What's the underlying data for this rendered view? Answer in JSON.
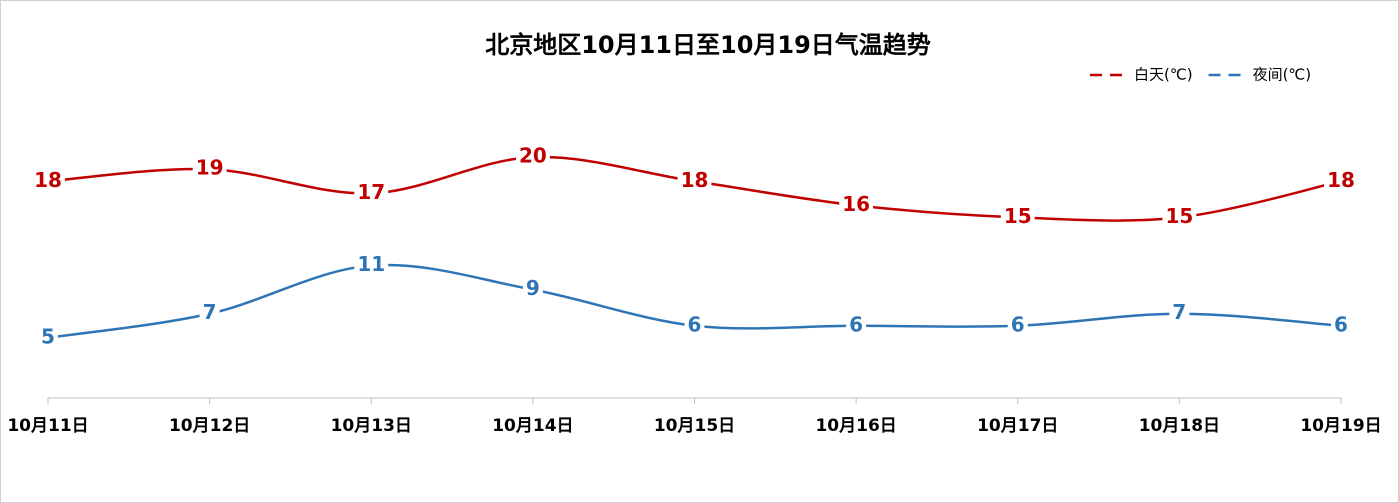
{
  "chart_data": {
    "type": "line",
    "title": "北京地区10月11日至10月19日气温趋势",
    "categories": [
      "10月11日",
      "10月12日",
      "10月13日",
      "10月14日",
      "10月15日",
      "10月16日",
      "10月17日",
      "10月18日",
      "10月19日"
    ],
    "series": [
      {
        "name": "白天(℃)",
        "color": "#c00000",
        "values": [
          18,
          19,
          17,
          20,
          18,
          16,
          15,
          15,
          18
        ]
      },
      {
        "name": "夜间(℃)",
        "color": "#2e75b6",
        "values": [
          5,
          7,
          11,
          9,
          6,
          6,
          6,
          7,
          6
        ]
      }
    ],
    "ylim": [
      0,
      25
    ],
    "smooth": true,
    "legend": "top-right"
  }
}
